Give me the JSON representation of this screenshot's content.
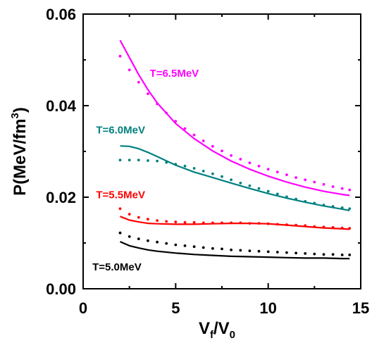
{
  "chart_data": {
    "type": "line",
    "xlabel": {
      "main": "V",
      "sub1": "f",
      "mid": "/V",
      "sub2": "0"
    },
    "ylabel": {
      "pre": "P(MeV/fm",
      "sup": "3",
      "post": ")"
    },
    "xlim": [
      0,
      15
    ],
    "ylim": [
      0.0,
      0.06
    ],
    "xticks": [
      0,
      5,
      10,
      15
    ],
    "xtick_labels": [
      "0",
      "5",
      "10",
      "15"
    ],
    "yticks": [
      0.0,
      0.02,
      0.04,
      0.06
    ],
    "ytick_labels": [
      "0.00",
      "0.02",
      "0.04",
      "0.06"
    ],
    "grid": false,
    "series": [
      {
        "name": "T=6.5MeV",
        "color": "#ff00ff",
        "label_at": [
          3.6,
          0.0463
        ],
        "solid": {
          "x": [
            2.0,
            2.5,
            3.0,
            3.5,
            4.0,
            5.0,
            6.0,
            7.0,
            8.0,
            9.0,
            10.0,
            11.0,
            12.0,
            13.0,
            14.0,
            14.4
          ],
          "y": [
            0.0543,
            0.0505,
            0.0468,
            0.0435,
            0.0406,
            0.0361,
            0.0328,
            0.0301,
            0.0279,
            0.0261,
            0.0246,
            0.0233,
            0.0222,
            0.0213,
            0.0206,
            0.0204
          ]
        },
        "dotted": {
          "x": [
            2.0,
            2.5,
            3.0,
            3.5,
            4.0,
            4.5,
            5.0,
            5.5,
            6.0,
            6.5,
            7.0,
            7.5,
            8.0,
            8.5,
            9.0,
            9.5,
            10.0,
            10.5,
            11.0,
            11.5,
            12.0,
            12.5,
            13.0,
            13.5,
            14.0,
            14.4
          ],
          "y": [
            0.0508,
            0.0478,
            0.0451,
            0.0426,
            0.0404,
            0.0384,
            0.0366,
            0.035,
            0.0336,
            0.0323,
            0.0311,
            0.0301,
            0.0291,
            0.0283,
            0.0275,
            0.0268,
            0.0261,
            0.0255,
            0.0249,
            0.0243,
            0.0238,
            0.0233,
            0.0228,
            0.0223,
            0.0219,
            0.0216
          ]
        }
      },
      {
        "name": "T=6.0MeV",
        "color": "#008080",
        "label_at": [
          0.7,
          0.0339
        ],
        "solid": {
          "x": [
            2.0,
            2.5,
            3.0,
            3.5,
            4.0,
            5.0,
            6.0,
            7.0,
            8.0,
            9.0,
            10.0,
            11.0,
            12.0,
            13.0,
            14.0,
            14.4
          ],
          "y": [
            0.0312,
            0.0311,
            0.0306,
            0.0298,
            0.0289,
            0.027,
            0.0255,
            0.0243,
            0.0231,
            0.0219,
            0.0208,
            0.0198,
            0.0189,
            0.0181,
            0.0174,
            0.0171
          ]
        },
        "dotted": {
          "x": [
            2.0,
            2.5,
            3.0,
            3.5,
            4.0,
            4.5,
            5.0,
            5.5,
            6.0,
            6.5,
            7.0,
            7.5,
            8.0,
            8.5,
            9.0,
            9.5,
            10.0,
            10.5,
            11.0,
            11.5,
            12.0,
            12.5,
            13.0,
            13.5,
            14.0,
            14.4
          ],
          "y": [
            0.0281,
            0.0281,
            0.0281,
            0.028,
            0.0279,
            0.0276,
            0.0272,
            0.0268,
            0.0263,
            0.0257,
            0.0251,
            0.0245,
            0.0238,
            0.0231,
            0.0225,
            0.0219,
            0.0213,
            0.0207,
            0.0201,
            0.0196,
            0.0191,
            0.0187,
            0.0183,
            0.018,
            0.0177,
            0.0175
          ]
        }
      },
      {
        "name": "T=5.5MeV",
        "color": "#ff0000",
        "label_at": [
          0.7,
          0.0198
        ],
        "solid": {
          "x": [
            2.0,
            2.5,
            3.0,
            3.5,
            4.0,
            5.0,
            6.0,
            7.0,
            8.0,
            9.0,
            10.0,
            11.0,
            12.0,
            13.0,
            14.0,
            14.4
          ],
          "y": [
            0.0158,
            0.015,
            0.0146,
            0.0143,
            0.0142,
            0.0141,
            0.0141,
            0.0142,
            0.0143,
            0.0143,
            0.0142,
            0.0139,
            0.0136,
            0.0133,
            0.0131,
            0.013
          ]
        },
        "dotted": {
          "x": [
            2.0,
            2.5,
            3.0,
            3.5,
            4.0,
            4.5,
            5.0,
            5.5,
            6.0,
            6.5,
            7.0,
            7.5,
            8.0,
            8.5,
            9.0,
            9.5,
            10.0,
            10.5,
            11.0,
            11.5,
            12.0,
            12.5,
            13.0,
            13.5,
            14.0,
            14.4
          ],
          "y": [
            0.0175,
            0.0163,
            0.0156,
            0.0152,
            0.0149,
            0.0147,
            0.0146,
            0.0145,
            0.0145,
            0.0144,
            0.0144,
            0.0144,
            0.0144,
            0.0144,
            0.0143,
            0.0143,
            0.0142,
            0.0141,
            0.014,
            0.0139,
            0.0138,
            0.0136,
            0.0135,
            0.0134,
            0.0133,
            0.0132
          ]
        }
      },
      {
        "name": "T=5.0MeV",
        "color": "#000000",
        "label_at": [
          0.5,
          0.004
        ],
        "solid": {
          "x": [
            2.0,
            2.5,
            3.0,
            3.5,
            4.0,
            5.0,
            6.0,
            7.0,
            8.0,
            9.0,
            10.0,
            11.0,
            12.0,
            13.0,
            14.0,
            14.4
          ],
          "y": [
            0.0103,
            0.0094,
            0.0089,
            0.0085,
            0.0082,
            0.0078,
            0.0075,
            0.0073,
            0.0071,
            0.007,
            0.0069,
            0.0068,
            0.0067,
            0.0067,
            0.0066,
            0.0066
          ]
        },
        "dotted": {
          "x": [
            2.0,
            2.5,
            3.0,
            3.5,
            4.0,
            4.5,
            5.0,
            5.5,
            6.0,
            6.5,
            7.0,
            7.5,
            8.0,
            8.5,
            9.0,
            9.5,
            10.0,
            10.5,
            11.0,
            11.5,
            12.0,
            12.5,
            13.0,
            13.5,
            14.0,
            14.4
          ],
          "y": [
            0.0122,
            0.0114,
            0.0109,
            0.0105,
            0.0102,
            0.0099,
            0.0096,
            0.0094,
            0.0092,
            0.009,
            0.0088,
            0.0087,
            0.0085,
            0.0084,
            0.0083,
            0.0082,
            0.0081,
            0.008,
            0.0079,
            0.0078,
            0.0077,
            0.0076,
            0.0075,
            0.0075,
            0.0074,
            0.0074
          ]
        }
      }
    ]
  }
}
